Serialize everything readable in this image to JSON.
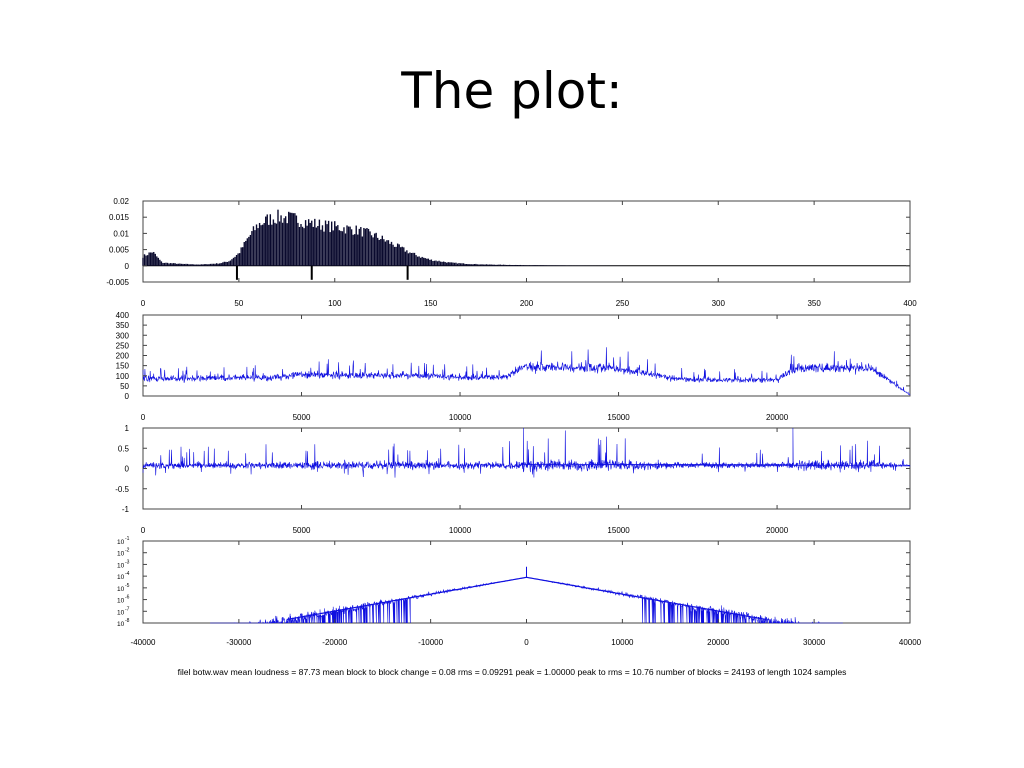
{
  "title": "The plot:",
  "footer": "filel botw.wav mean loudness =  87.73 mean block to block change =   0.08 rms =  0.09291 peak =  1.00000 peak to rms =  10.76 number of blocks = 24193 of length 1024 samples",
  "colors": {
    "trace": "#1010e0",
    "histogram": "#0a0a2e",
    "axis": "#444444"
  },
  "chart_data": [
    {
      "type": "bar",
      "description": "histogram",
      "xlim": [
        0,
        400
      ],
      "ylim": [
        -0.005,
        0.02
      ],
      "xticks": [
        "0",
        "50",
        "100",
        "150",
        "200",
        "250",
        "300",
        "350",
        "400"
      ],
      "yticks": [
        "0.02",
        "0.015",
        "0.01",
        "0.005",
        "0",
        "-0.005"
      ],
      "markers_x": [
        49,
        88,
        138
      ],
      "envelope_x": [
        0,
        5,
        10,
        20,
        30,
        40,
        45,
        50,
        55,
        60,
        65,
        70,
        75,
        80,
        85,
        90,
        95,
        100,
        105,
        110,
        115,
        120,
        125,
        130,
        135,
        140,
        145,
        150,
        160,
        170,
        180,
        200,
        220,
        240,
        260
      ],
      "envelope_y": [
        0.003,
        0.0045,
        0.001,
        0.0006,
        0.0004,
        0.0008,
        0.0015,
        0.004,
        0.009,
        0.013,
        0.0147,
        0.0155,
        0.0153,
        0.0148,
        0.014,
        0.0133,
        0.0128,
        0.0124,
        0.012,
        0.0115,
        0.0108,
        0.0098,
        0.0085,
        0.007,
        0.0055,
        0.004,
        0.0028,
        0.0019,
        0.001,
        0.0006,
        0.0004,
        0.0002,
        0.0001,
        5e-05,
        0
      ]
    },
    {
      "type": "line",
      "description": "loudness per block",
      "xlim": [
        0,
        24193
      ],
      "ylim": [
        0,
        400
      ],
      "xticks": [
        "0",
        "5000",
        "10000",
        "15000",
        "20000"
      ],
      "yticks": [
        "400",
        "350",
        "300",
        "250",
        "200",
        "150",
        "100",
        "50",
        "0"
      ],
      "envelope_x": [
        0,
        4000,
        5000,
        9000,
        10000,
        11500,
        12000,
        14000,
        15000,
        16000,
        17000,
        20000,
        20500,
        21000,
        23000,
        23500,
        24193
      ],
      "envelope_y": [
        85,
        90,
        105,
        100,
        90,
        95,
        145,
        140,
        135,
        110,
        80,
        80,
        130,
        140,
        135,
        80,
        5
      ]
    },
    {
      "type": "line",
      "description": "block to block change",
      "xlim": [
        0,
        24193
      ],
      "ylim": [
        -1,
        1
      ],
      "xticks": [
        "0",
        "5000",
        "10000",
        "15000",
        "20000"
      ],
      "yticks": [
        "1",
        "0.5",
        "0",
        "-0.5",
        "-1"
      ]
    },
    {
      "type": "line",
      "description": "log-scale distribution",
      "xlim": [
        -40000,
        40000
      ],
      "ylim_log_exponent": [
        -8,
        -1
      ],
      "xticks": [
        "-40000",
        "-30000",
        "-20000",
        "-10000",
        "0",
        "10000",
        "20000",
        "30000",
        "40000"
      ],
      "yticks_base": "10",
      "yticks_exponents": [
        "-1",
        "-2",
        "-3",
        "-4",
        "-5",
        "-6",
        "-7",
        "-8"
      ],
      "peak_x": 0,
      "peak_log": -4.1
    }
  ]
}
